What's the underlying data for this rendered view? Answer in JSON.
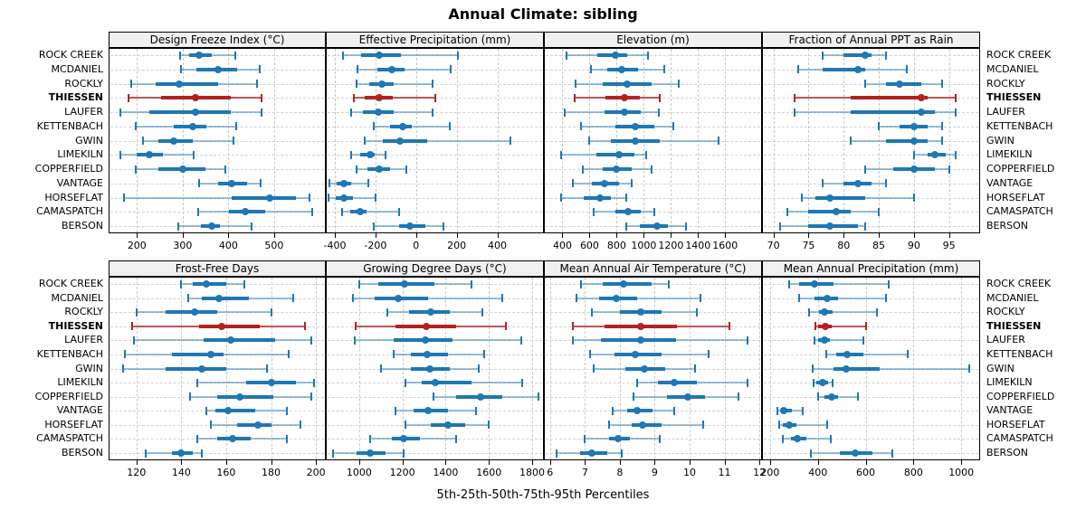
{
  "title": "Annual Climate: sibling",
  "caption": "5th-25th-50th-75th-95th Percentiles",
  "sites": [
    "ROCK CREEK",
    "MCDANIEL",
    "ROCKLY",
    "THIESSEN",
    "LAUFER",
    "KETTENBACH",
    "GWIN",
    "LIMEKILN",
    "COPPERFIELD",
    "VANTAGE",
    "HORSEFLAT",
    "CAMASPATCH",
    "BERSON"
  ],
  "highlight_site": "THIESSEN",
  "colors": {
    "series_normal": "#1f77b4",
    "series_normal_faint": "rgba(31,119,180,0.45)",
    "series_highlight": "#b22222",
    "series_highlight_faint": "rgba(178,34,34,0.75)",
    "strip_bg": "#f0f0f0",
    "panel_border": "#000000",
    "grid": "#c8c8c8"
  },
  "chart_data": [
    {
      "type": "dotplot-percentiles",
      "title": "Design Freeze Index (°C)",
      "row": 0,
      "col": 0,
      "xlim": [
        140,
        611
      ],
      "ticks": [
        200,
        300,
        400,
        500
      ],
      "percentiles": [
        "5th",
        "25th",
        "50th",
        "75th",
        "95th"
      ],
      "values": [
        [
          295,
          315,
          335,
          363,
          415
        ],
        [
          297,
          330,
          378,
          420,
          468
        ],
        [
          188,
          240,
          293,
          378,
          462
        ],
        [
          182,
          252,
          328,
          405,
          472
        ],
        [
          163,
          228,
          328,
          405,
          472
        ],
        [
          198,
          280,
          322,
          352,
          418
        ],
        [
          213,
          247,
          280,
          322,
          412
        ],
        [
          163,
          200,
          227,
          257,
          325
        ],
        [
          198,
          247,
          300,
          350,
          393
        ],
        [
          335,
          378,
          408,
          440,
          470
        ],
        [
          172,
          408,
          491,
          548,
          578
        ],
        [
          333,
          401,
          437,
          480,
          583
        ],
        [
          291,
          339,
          364,
          381,
          451
        ]
      ]
    },
    {
      "type": "dotplot-percentiles",
      "title": "Effective Precipitation (mm)",
      "row": 0,
      "col": 1,
      "xlim": [
        -440,
        625
      ],
      "ticks": [
        -400,
        -200,
        0,
        200,
        400
      ],
      "percentiles": [
        "5th",
        "25th",
        "50th",
        "75th",
        "95th"
      ],
      "values": [
        [
          -360,
          -270,
          -180,
          -75,
          205
        ],
        [
          -290,
          -190,
          -120,
          -55,
          170
        ],
        [
          -295,
          -230,
          -170,
          -110,
          80
        ],
        [
          -305,
          -255,
          -180,
          -115,
          95
        ],
        [
          -320,
          -260,
          -185,
          -110,
          80
        ],
        [
          -210,
          -130,
          -65,
          -20,
          165
        ],
        [
          -255,
          -165,
          -80,
          55,
          465
        ],
        [
          -320,
          -275,
          -225,
          -205,
          -150
        ],
        [
          -295,
          -240,
          -180,
          -130,
          -50
        ],
        [
          -425,
          -390,
          -355,
          -320,
          -235
        ],
        [
          -430,
          -395,
          -355,
          -310,
          -200
        ],
        [
          -365,
          -325,
          -275,
          -245,
          -85
        ],
        [
          -210,
          -85,
          -30,
          45,
          135
        ]
      ]
    },
    {
      "type": "dotplot-percentiles",
      "title": "Elevation (m)",
      "row": 0,
      "col": 2,
      "xlim": [
        270,
        1865
      ],
      "ticks": [
        400,
        600,
        800,
        1000,
        1200,
        1400,
        1600
      ],
      "percentiles": [
        "5th",
        "25th",
        "50th",
        "75th",
        "95th"
      ],
      "values": [
        [
          430,
          660,
          790,
          880,
          1030
        ],
        [
          610,
          730,
          840,
          960,
          1150
        ],
        [
          500,
          700,
          880,
          1060,
          1260
        ],
        [
          490,
          720,
          855,
          970,
          1120
        ],
        [
          420,
          710,
          860,
          980,
          1110
        ],
        [
          540,
          790,
          940,
          1080,
          1220
        ],
        [
          600,
          760,
          940,
          1120,
          1550
        ],
        [
          390,
          650,
          820,
          930,
          1020
        ],
        [
          550,
          700,
          800,
          910,
          1060
        ],
        [
          480,
          620,
          710,
          820,
          910
        ],
        [
          390,
          560,
          680,
          760,
          870
        ],
        [
          630,
          790,
          885,
          980,
          1080
        ],
        [
          870,
          970,
          1095,
          1180,
          1310
        ]
      ]
    },
    {
      "type": "dotplot-percentiles",
      "title": "Fraction of Annual PPT as Rain",
      "row": 0,
      "col": 3,
      "xlim": [
        68.5,
        99.3
      ],
      "ticks": [
        70,
        75,
        80,
        85,
        90,
        95
      ],
      "percentiles": [
        "5th",
        "25th",
        "50th",
        "75th",
        "95th"
      ],
      "values": [
        [
          77,
          80,
          83,
          84,
          86
        ],
        [
          73.5,
          77,
          82,
          83,
          89
        ],
        [
          83,
          86,
          88,
          91,
          94
        ],
        [
          73,
          81,
          91,
          92,
          96
        ],
        [
          73,
          81,
          91,
          93,
          96
        ],
        [
          85,
          88,
          90,
          92,
          94
        ],
        [
          81,
          86,
          90,
          92,
          94
        ],
        [
          90,
          92,
          93,
          94.5,
          96
        ],
        [
          83,
          87,
          90,
          93,
          95
        ],
        [
          77,
          80,
          82,
          84,
          86
        ],
        [
          74,
          76,
          78,
          83,
          90
        ],
        [
          72,
          75,
          79,
          81,
          85
        ],
        [
          71,
          75,
          78,
          82,
          83
        ]
      ]
    },
    {
      "type": "dotplot-percentiles",
      "title": "Frost-Free Days",
      "row": 1,
      "col": 0,
      "xlim": [
        108,
        204
      ],
      "ticks": [
        120,
        140,
        160,
        180,
        200
      ],
      "percentiles": [
        "5th",
        "25th",
        "50th",
        "75th",
        "95th"
      ],
      "values": [
        [
          140,
          145,
          151,
          160,
          168
        ],
        [
          143,
          149,
          157,
          170,
          190
        ],
        [
          120,
          133,
          146,
          156,
          180
        ],
        [
          118,
          148,
          158,
          175,
          195
        ],
        [
          119,
          150,
          162,
          182,
          198
        ],
        [
          115,
          136,
          153,
          159,
          188
        ],
        [
          114,
          133,
          149,
          160,
          178
        ],
        [
          147,
          169,
          180,
          191,
          199
        ],
        [
          144,
          156,
          166,
          181,
          198
        ],
        [
          151,
          155,
          161,
          173,
          187
        ],
        [
          153,
          165,
          174,
          180,
          193
        ],
        [
          147,
          156,
          163,
          171,
          187
        ],
        [
          124,
          136,
          140,
          145,
          149
        ]
      ]
    },
    {
      "type": "dotplot-percentiles",
      "title": "Growing Degree Days (°C)",
      "row": 1,
      "col": 1,
      "xlim": [
        850,
        1850
      ],
      "ticks": [
        1000,
        1200,
        1400,
        1600,
        1800
      ],
      "percentiles": [
        "5th",
        "25th",
        "50th",
        "75th",
        "95th"
      ],
      "values": [
        [
          1000,
          1090,
          1210,
          1350,
          1520
        ],
        [
          970,
          1070,
          1180,
          1320,
          1660
        ],
        [
          1130,
          1230,
          1330,
          1420,
          1570
        ],
        [
          985,
          1170,
          1310,
          1450,
          1680
        ],
        [
          980,
          1160,
          1305,
          1430,
          1750
        ],
        [
          1160,
          1240,
          1315,
          1410,
          1580
        ],
        [
          1100,
          1240,
          1325,
          1420,
          1555
        ],
        [
          1215,
          1290,
          1350,
          1520,
          1755
        ],
        [
          1345,
          1450,
          1560,
          1660,
          1830
        ],
        [
          1170,
          1250,
          1320,
          1410,
          1540
        ],
        [
          1215,
          1330,
          1410,
          1490,
          1600
        ],
        [
          1050,
          1150,
          1205,
          1280,
          1450
        ],
        [
          880,
          990,
          1050,
          1120,
          1205
        ]
      ]
    },
    {
      "type": "dotplot-percentiles",
      "title": "Mean Annual Air Temperature (°C)",
      "row": 1,
      "col": 2,
      "xlim": [
        5.85,
        12.05
      ],
      "ticks": [
        6,
        7,
        8,
        9,
        10,
        11,
        12
      ],
      "percentiles": [
        "5th",
        "25th",
        "50th",
        "75th",
        "95th"
      ],
      "values": [
        [
          6.9,
          7.5,
          8.1,
          8.9,
          9.4
        ],
        [
          6.75,
          7.4,
          7.9,
          8.5,
          10.3
        ],
        [
          7.2,
          8.0,
          8.6,
          9.2,
          10.2
        ],
        [
          6.65,
          7.55,
          8.6,
          9.65,
          11.15
        ],
        [
          6.65,
          7.45,
          8.6,
          9.6,
          11.65
        ],
        [
          7.15,
          7.85,
          8.45,
          9.2,
          10.55
        ],
        [
          7.25,
          8.15,
          8.7,
          9.3,
          10.15
        ],
        [
          8.5,
          9.1,
          9.55,
          10.2,
          11.65
        ],
        [
          8.4,
          9.35,
          9.95,
          10.45,
          11.4
        ],
        [
          7.8,
          8.2,
          8.5,
          8.95,
          9.55
        ],
        [
          7.7,
          8.35,
          8.65,
          9.2,
          10.4
        ],
        [
          7.0,
          7.7,
          7.95,
          8.3,
          9.15
        ],
        [
          6.2,
          6.85,
          7.2,
          7.65,
          8.05
        ]
      ]
    },
    {
      "type": "dotplot-percentiles",
      "title": "Mean Annual Precipitation (mm)",
      "row": 1,
      "col": 3,
      "xlim": [
        170,
        1075
      ],
      "ticks": [
        200,
        400,
        600,
        800,
        1000
      ],
      "percentiles": [
        "5th",
        "25th",
        "50th",
        "75th",
        "95th"
      ],
      "values": [
        [
          280,
          320,
          385,
          465,
          695
        ],
        [
          323,
          385,
          438,
          486,
          686
        ],
        [
          363,
          404,
          427,
          463,
          648
        ],
        [
          388,
          400,
          431,
          456,
          603
        ],
        [
          385,
          402,
          428,
          452,
          592
        ],
        [
          435,
          475,
          522,
          590,
          775
        ],
        [
          380,
          465,
          520,
          660,
          1035
        ],
        [
          382,
          394,
          419,
          444,
          460
        ],
        [
          400,
          429,
          457,
          486,
          568
        ],
        [
          230,
          245,
          258,
          292,
          335
        ],
        [
          240,
          255,
          278,
          310,
          440
        ],
        [
          255,
          288,
          315,
          350,
          455
        ],
        [
          370,
          490,
          555,
          630,
          710
        ]
      ]
    }
  ]
}
